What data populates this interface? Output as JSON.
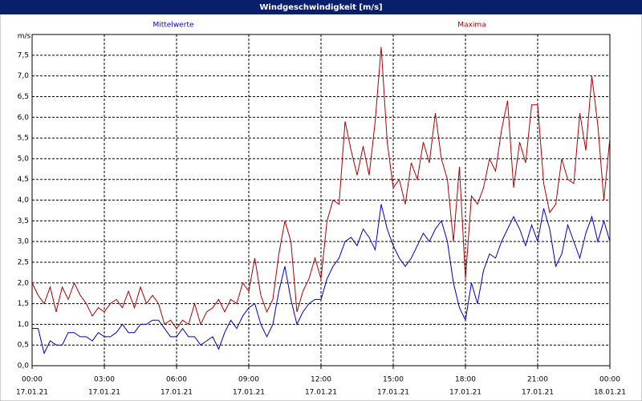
{
  "chart_data": {
    "type": "line",
    "title": "Windgeschwindigkeit [m/s]",
    "ylabel": "m/s",
    "x": [
      0,
      0.25,
      0.5,
      0.75,
      1,
      1.25,
      1.5,
      1.75,
      2,
      2.25,
      2.5,
      2.75,
      3,
      3.25,
      3.5,
      3.75,
      4,
      4.25,
      4.5,
      4.75,
      5,
      5.25,
      5.5,
      5.75,
      6,
      6.25,
      6.5,
      6.75,
      7,
      7.25,
      7.5,
      7.75,
      8,
      8.25,
      8.5,
      8.75,
      9,
      9.25,
      9.5,
      9.75,
      10,
      10.25,
      10.5,
      10.75,
      11,
      11.25,
      11.5,
      11.75,
      12,
      12.25,
      12.5,
      12.75,
      13,
      13.25,
      13.5,
      13.75,
      14,
      14.25,
      14.5,
      14.75,
      15,
      15.25,
      15.5,
      15.75,
      16,
      16.25,
      16.5,
      16.75,
      17,
      17.25,
      17.5,
      17.75,
      18,
      18.25,
      18.5,
      18.75,
      19,
      19.25,
      19.5,
      19.75,
      20,
      20.25,
      20.5,
      20.75,
      21,
      21.25,
      21.5,
      21.75,
      22,
      22.25,
      22.5,
      22.75,
      23,
      23.25,
      23.5,
      23.75,
      24
    ],
    "series": [
      {
        "name": "Mittelwerte",
        "color": "#0000c0",
        "values": [
          0.9,
          0.9,
          0.3,
          0.6,
          0.5,
          0.5,
          0.8,
          0.8,
          0.7,
          0.7,
          0.6,
          0.8,
          0.7,
          0.7,
          0.8,
          1.0,
          0.8,
          0.8,
          1.0,
          1.0,
          1.1,
          1.1,
          0.9,
          0.7,
          0.7,
          0.9,
          0.7,
          0.7,
          0.5,
          0.6,
          0.7,
          0.4,
          0.8,
          1.1,
          0.9,
          1.2,
          1.4,
          1.5,
          1.0,
          0.7,
          1.0,
          1.8,
          2.4,
          1.6,
          1.0,
          1.3,
          1.5,
          1.6,
          1.6,
          2.1,
          2.4,
          2.6,
          3.0,
          3.1,
          2.9,
          3.3,
          3.1,
          2.8,
          3.9,
          3.3,
          2.9,
          2.6,
          2.4,
          2.6,
          2.9,
          3.2,
          3.0,
          3.3,
          3.5,
          3.0,
          2.0,
          1.4,
          1.1,
          2.0,
          1.5,
          2.3,
          2.7,
          2.6,
          3.0,
          3.3,
          3.6,
          3.3,
          2.9,
          3.4,
          3.0,
          3.8,
          3.3,
          2.4,
          2.7,
          3.4,
          3.0,
          2.6,
          3.2,
          3.6,
          3.0,
          3.5,
          3.0
        ]
      },
      {
        "name": "Maxima",
        "color": "#b00000",
        "values": [
          2.0,
          1.7,
          1.5,
          1.9,
          1.3,
          1.9,
          1.6,
          2.0,
          1.7,
          1.5,
          1.2,
          1.4,
          1.3,
          1.5,
          1.6,
          1.4,
          1.8,
          1.4,
          1.9,
          1.5,
          1.7,
          1.5,
          1.0,
          1.1,
          0.9,
          1.1,
          1.0,
          1.5,
          1.0,
          1.3,
          1.4,
          1.6,
          1.3,
          1.6,
          1.5,
          2.0,
          1.8,
          2.6,
          1.7,
          1.3,
          1.6,
          2.7,
          3.5,
          3.0,
          1.3,
          1.8,
          2.1,
          2.6,
          2.1,
          3.5,
          4.0,
          3.9,
          5.9,
          5.2,
          4.6,
          5.3,
          4.6,
          5.9,
          7.7,
          5.4,
          4.3,
          4.5,
          3.9,
          4.9,
          4.5,
          5.4,
          4.9,
          6.1,
          5.0,
          4.5,
          3.0,
          4.8,
          2.1,
          4.1,
          3.9,
          4.3,
          5.0,
          4.7,
          5.7,
          6.4,
          4.3,
          5.4,
          4.9,
          6.3,
          6.3,
          4.4,
          3.7,
          3.9,
          5.0,
          4.5,
          4.4,
          6.1,
          5.2,
          7.0,
          5.8,
          4.0,
          5.5
        ]
      }
    ],
    "xlim": [
      0,
      24
    ],
    "xticks": [
      {
        "value": 0,
        "label": "00:00"
      },
      {
        "value": 3,
        "label": "03:00"
      },
      {
        "value": 6,
        "label": "06:00"
      },
      {
        "value": 9,
        "label": "09:00"
      },
      {
        "value": 12,
        "label": "12:00"
      },
      {
        "value": 15,
        "label": "15:00"
      },
      {
        "value": 18,
        "label": "18:00"
      },
      {
        "value": 21,
        "label": "21:00"
      },
      {
        "value": 24,
        "label": "00:00"
      }
    ],
    "xtick_dates": [
      "17.01.21",
      "17.01.21",
      "17.01.21",
      "17.01.21",
      "17.01.21",
      "17.01.21",
      "17.01.21",
      "17.01.21",
      "18.01.21"
    ],
    "ylim": [
      0,
      8
    ],
    "yticks": [
      {
        "value": 0,
        "label": "0,0"
      },
      {
        "value": 0.5,
        "label": "0,5"
      },
      {
        "value": 1,
        "label": "1,0"
      },
      {
        "value": 1.5,
        "label": "1,5"
      },
      {
        "value": 2,
        "label": "2,0"
      },
      {
        "value": 2.5,
        "label": "2,5"
      },
      {
        "value": 3,
        "label": "3,0"
      },
      {
        "value": 3.5,
        "label": "3,5"
      },
      {
        "value": 4,
        "label": "4,0"
      },
      {
        "value": 4.5,
        "label": "4,5"
      },
      {
        "value": 5,
        "label": "5,0"
      },
      {
        "value": 5.5,
        "label": "5,5"
      },
      {
        "value": 6,
        "label": "6,0"
      },
      {
        "value": 6.5,
        "label": "6,5"
      },
      {
        "value": 7,
        "label": "7,0"
      },
      {
        "value": 7.5,
        "label": "7,5"
      }
    ],
    "grid": true
  }
}
